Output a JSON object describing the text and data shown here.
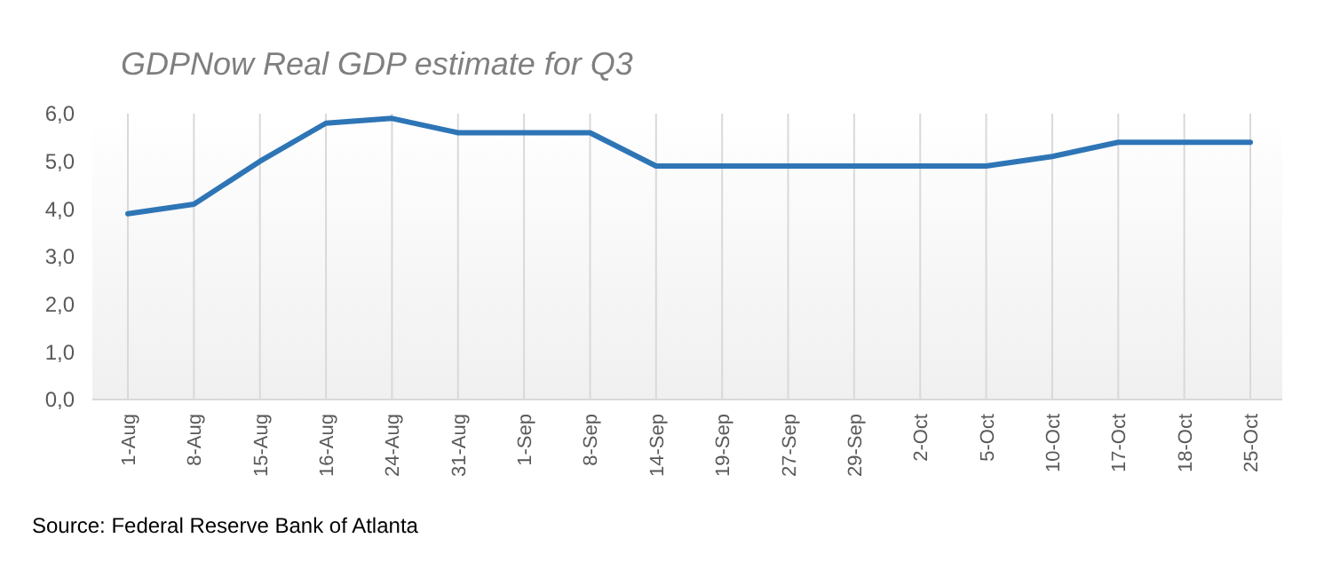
{
  "chart_data": {
    "type": "line",
    "title": "GDPNow Real GDP estimate for Q3",
    "categories": [
      "1-Aug",
      "8-Aug",
      "15-Aug",
      "16-Aug",
      "24-Aug",
      "31-Aug",
      "1-Sep",
      "8-Sep",
      "14-Sep",
      "19-Sep",
      "27-Sep",
      "29-Sep",
      "2-Oct",
      "5-Oct",
      "10-Oct",
      "17-Oct",
      "18-Oct",
      "25-Oct"
    ],
    "series": [
      {
        "color": "#2e75b6",
        "values": [
          3.9,
          4.1,
          5.0,
          5.8,
          5.9,
          5.6,
          5.6,
          5.6,
          4.9,
          4.9,
          4.9,
          4.9,
          4.9,
          4.9,
          5.1,
          5.4,
          5.4,
          5.4
        ]
      }
    ],
    "ylim": [
      0,
      6
    ],
    "yticks": [
      {
        "value": 0,
        "label": "0,0"
      },
      {
        "value": 1,
        "label": "1,0"
      },
      {
        "value": 2,
        "label": "2,0"
      },
      {
        "value": 3,
        "label": "3,0"
      },
      {
        "value": 4,
        "label": "4,0"
      },
      {
        "value": 5,
        "label": "5,0"
      },
      {
        "value": 6,
        "label": "6,0"
      }
    ],
    "grid": "x",
    "marker": "none",
    "line_style": "solid",
    "annotations": [
      "Source: Federal Reserve Bank of Atlanta"
    ]
  }
}
